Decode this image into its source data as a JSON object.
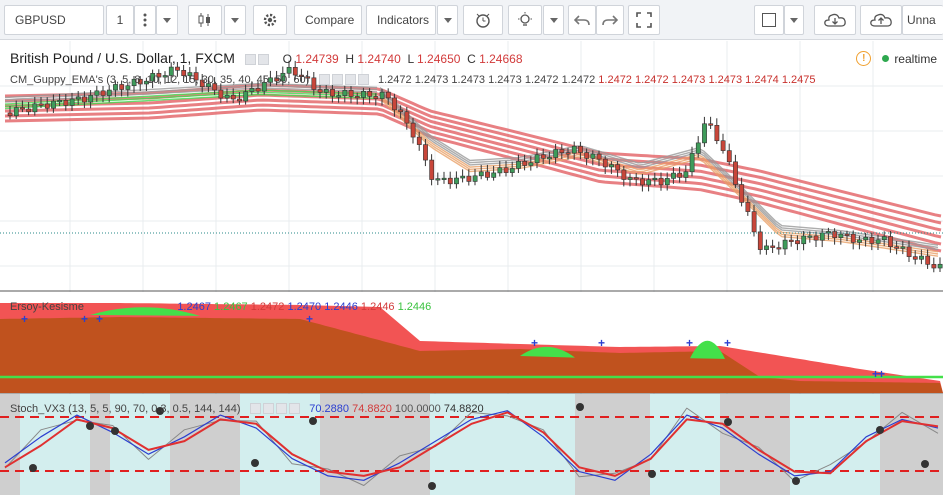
{
  "toolbar": {
    "symbol": "GBPUSD",
    "interval": "1",
    "compare_label": "Compare",
    "indicators_label": "Indicators",
    "layout_name": "Unna"
  },
  "chart_header": {
    "title": "British Pound / U.S. Dollar, 1, FXCM",
    "ohlc": {
      "o_label": "O",
      "o": "1.24739",
      "h_label": "H",
      "h": "1.24740",
      "l_label": "L",
      "l": "1.24650",
      "c_label": "C",
      "c": "1.24668"
    },
    "realtime_label": "realtime"
  },
  "indicators": {
    "guppy": {
      "name": "CM_Guppy_EMA's (3, 5, 8, 10, 12, 15, 30, 35, 40, 45, 50, 60)",
      "values_dark": [
        "1.2472",
        "1.2473",
        "1.2473",
        "1.2473",
        "1.2472",
        "1.2472"
      ],
      "values_red": [
        "1.2472",
        "1.2472",
        "1.2473",
        "1.2473",
        "1.2474",
        "1.2475"
      ]
    },
    "ersoy": {
      "name": "Ersoy-Kesisme",
      "v1": "1.2467",
      "v2": "1.2467",
      "v3": "1.2472",
      "v4": "1.2470",
      "v5": "1.2446",
      "v6": "1.2446",
      "v7": "1.2446"
    },
    "stoch": {
      "name": "Stoch_VX3 (13, 5, 5, 90, 70, 0.3, 0.5, 144, 144)",
      "v1": "70.2880",
      "v2": "74.8820",
      "v3": "100.0000",
      "v4": "74.8820"
    }
  },
  "colors": {
    "bull": "#3e9b5a",
    "bear": "#c8463a",
    "guppy_slow": "#e0555a",
    "guppy_fast_bull": "#3fd94f",
    "guppy_fast_bear": "#e8a067",
    "ersoy_brown": "#c0521e",
    "ersoy_red": "#f25454",
    "ersoy_green": "#44e04a",
    "stoch_red": "#e03030",
    "stoch_blue": "#2b3fd0"
  },
  "chart_data": [
    {
      "type": "candlestick",
      "title": "British Pound / U.S. Dollar, 1, FXCM",
      "y_approx_range": [
        1.244,
        1.249
      ],
      "close_path_approx": [
        1.2476,
        1.2478,
        1.248,
        1.2483,
        1.2487,
        1.2481,
        1.2484,
        1.2486,
        1.2488,
        1.2482,
        1.2481,
        1.248,
        1.2478,
        1.2464,
        1.2457,
        1.2458,
        1.2461,
        1.2466,
        1.2468,
        1.2466,
        1.246,
        1.2458,
        1.2459,
        1.2473,
        1.2465,
        1.245,
        1.2445,
        1.2447,
        1.2449,
        1.2448,
        1.2445,
        1.2444
      ],
      "last": {
        "open": 1.24739,
        "high": 1.2474,
        "low": 1.2465,
        "close": 1.24668
      }
    },
    {
      "type": "area",
      "title": "Ersoy-Kesisme",
      "values_approx": [
        1.2467,
        1.2472,
        1.247,
        1.2446
      ]
    },
    {
      "type": "line",
      "title": "Stoch_VX3",
      "ylim": [
        0,
        100
      ],
      "upper_level": 80,
      "lower_level": 20,
      "k_approx": [
        30,
        60,
        85,
        65,
        40,
        60,
        85,
        70,
        35,
        15,
        10,
        30,
        55,
        80,
        90,
        60,
        20,
        10,
        40,
        85,
        70,
        40,
        15,
        20,
        60,
        80,
        70
      ],
      "d_approx": [
        25,
        50,
        80,
        70,
        45,
        55,
        80,
        75,
        40,
        20,
        15,
        25,
        50,
        75,
        88,
        65,
        25,
        15,
        35,
        80,
        75,
        45,
        20,
        18,
        55,
        78,
        72
      ]
    }
  ]
}
